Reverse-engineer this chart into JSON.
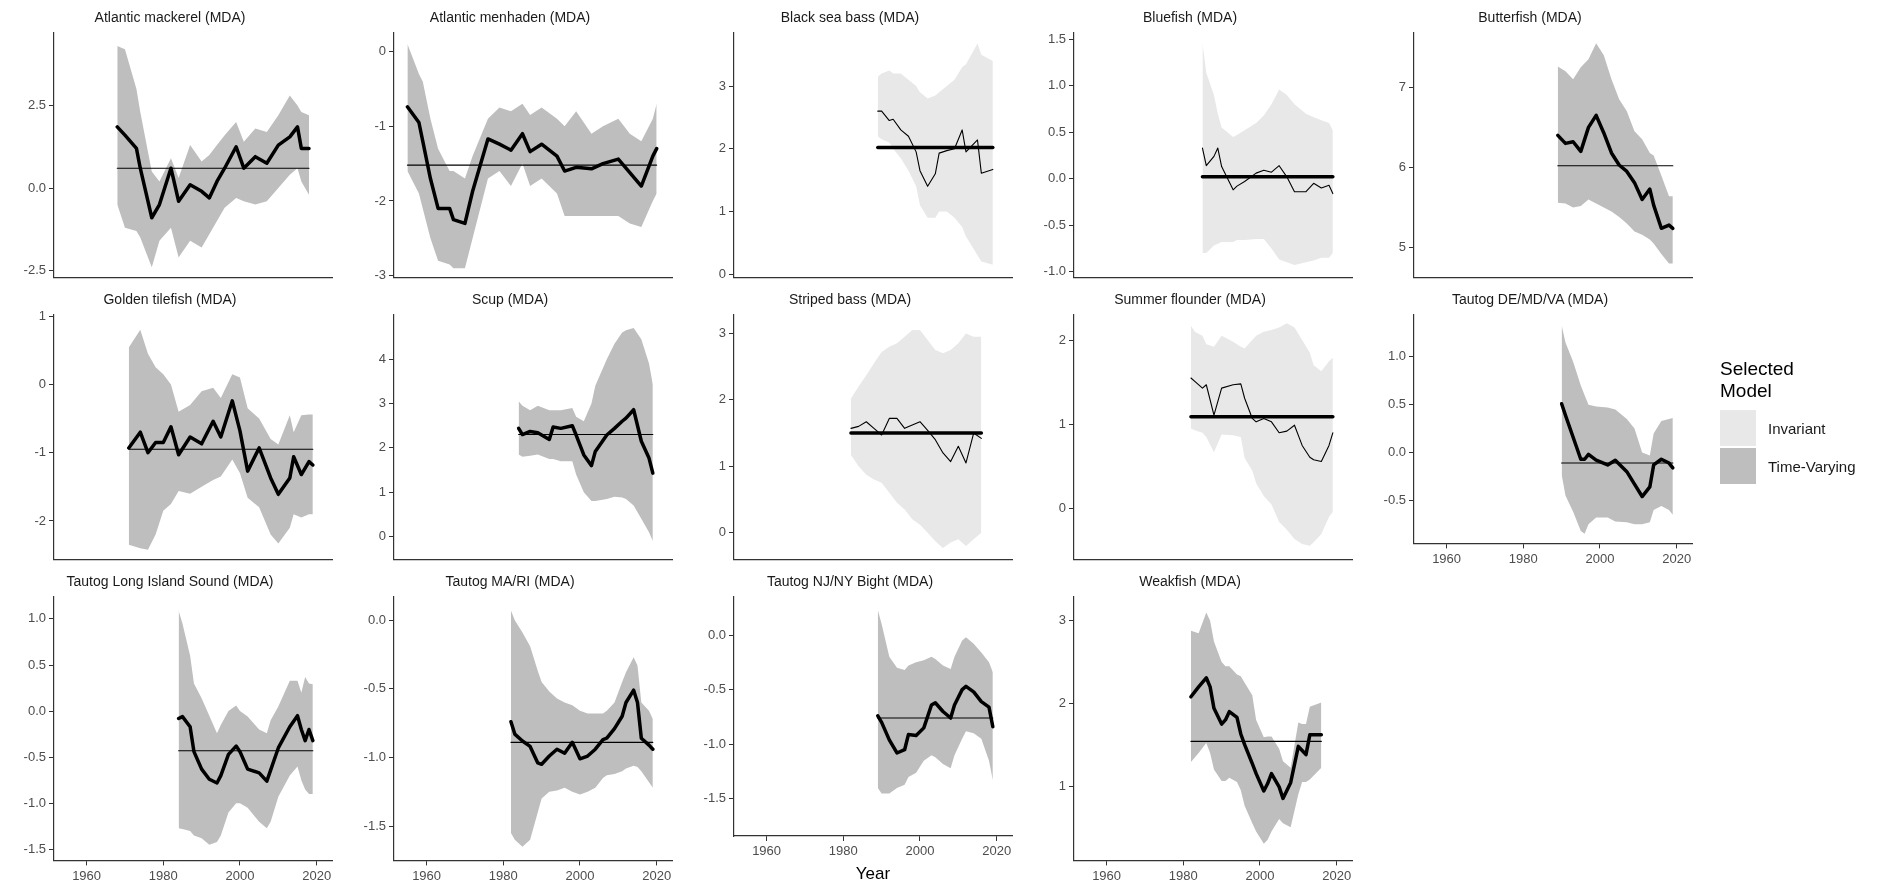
{
  "chart_data": [
    {
      "type": "line",
      "title": "Atlantic mackerel (MDA)",
      "tick_labels": "y",
      "xlim": [
        1951.5,
        2024
      ],
      "xticks": [
        1960,
        1980,
        2000,
        2020
      ],
      "ylim": [
        -2.7,
        4.7
      ],
      "yticks": [
        -2.5,
        {
          "value": 0,
          "label": "0.0"
        },
        2.5
      ],
      "series": [
        {
          "color": "#000000",
          "x": [
            1968,
            2018
          ],
          "values": [
            0.6,
            0.6
          ]
        },
        {
          "color": "#000000",
          "x": [
            1968,
            1970,
            1973,
            1974,
            1977,
            1979,
            1982,
            1984,
            1987,
            1990,
            1992,
            1994,
            1996,
            1999,
            2001,
            2004,
            2007,
            2010,
            2013,
            2015,
            2016,
            2018
          ],
          "values": [
            1.85,
            1.6,
            1.2,
            0.6,
            -0.9,
            -0.5,
            0.6,
            -0.4,
            0.1,
            -0.1,
            -0.3,
            0.2,
            0.6,
            1.25,
            0.6,
            0.95,
            0.75,
            1.3,
            1.55,
            1.85,
            1.2,
            1.2
          ],
          "upper": [
            4.3,
            4.2,
            3.0,
            2.3,
            0.5,
            0.2,
            0.9,
            0.3,
            1.3,
            0.8,
            1.0,
            1.3,
            1.6,
            2.0,
            1.4,
            1.8,
            1.7,
            2.2,
            2.8,
            2.5,
            2.3,
            2.2
          ],
          "lower": [
            -0.5,
            -1.2,
            -1.3,
            -1.5,
            -2.4,
            -1.6,
            -1.2,
            -2.1,
            -1.6,
            -1.8,
            -1.4,
            -1.0,
            -0.6,
            -0.3,
            -0.4,
            -0.5,
            -0.4,
            0.0,
            0.4,
            0.6,
            0.2,
            -0.2
          ]
        }
      ]
    },
    {
      "type": "line",
      "title": "Atlantic menhaden (MDA)",
      "tick_labels": "y",
      "xlim": [
        1951.5,
        2024
      ],
      "xticks": [
        1960,
        1980,
        2000,
        2020
      ],
      "ylim": [
        -3.02,
        0.25
      ],
      "yticks": [
        -3,
        -2,
        -1,
        0
      ],
      "series": [
        {
          "color": "#000000",
          "x": [
            1955,
            2020
          ],
          "values": [
            -1.52,
            -1.52
          ]
        },
        {
          "color": "#000000",
          "x": [
            1955,
            1958,
            1959,
            1961,
            1963,
            1966,
            1967,
            1970,
            1972,
            1976,
            1979,
            1982,
            1985,
            1987,
            1990,
            1994,
            1996,
            1999,
            2003,
            2006,
            2010,
            2013,
            2016,
            2019,
            2020
          ],
          "values": [
            -0.74,
            -0.95,
            -1.2,
            -1.7,
            -2.1,
            -2.1,
            -2.25,
            -2.3,
            -1.87,
            -1.17,
            -1.24,
            -1.32,
            -1.1,
            -1.34,
            -1.24,
            -1.4,
            -1.6,
            -1.55,
            -1.57,
            -1.5,
            -1.44,
            -1.62,
            -1.8,
            -1.4,
            -1.3
          ],
          "upper": [
            0.1,
            -0.3,
            -0.4,
            -0.9,
            -1.3,
            -1.6,
            -1.6,
            -1.7,
            -1.4,
            -0.9,
            -0.75,
            -0.8,
            -0.7,
            -0.85,
            -0.75,
            -0.9,
            -1.0,
            -0.8,
            -1.1,
            -1.0,
            -0.9,
            -1.1,
            -1.2,
            -0.9,
            -0.7
          ],
          "lower": [
            -1.6,
            -1.9,
            -2.1,
            -2.5,
            -2.8,
            -2.85,
            -2.9,
            -2.9,
            -2.5,
            -1.7,
            -1.6,
            -1.8,
            -1.5,
            -1.8,
            -1.7,
            -1.9,
            -2.2,
            -2.2,
            -2.2,
            -2.2,
            -2.2,
            -2.3,
            -2.35,
            -2.0,
            -1.9
          ]
        }
      ]
    },
    {
      "type": "line",
      "title": "Black sea bass (MDA)",
      "tick_labels": "y",
      "xlim": [
        1951.5,
        2024
      ],
      "xticks": [
        1960,
        1980,
        2000,
        2020
      ],
      "ylim": [
        -0.05,
        3.85
      ],
      "yticks": [
        0,
        1,
        2,
        3
      ],
      "series": [
        {
          "color": "#000000",
          "x": [
            1989,
            1990,
            1992,
            1993,
            1995,
            1997,
            1999,
            2000,
            2002,
            2004,
            2005,
            2007,
            2009,
            2011,
            2012,
            2015,
            2016,
            2019
          ],
          "values": [
            2.02,
            2.02,
            2.02,
            2.02,
            2.02,
            2.02,
            2.02,
            2.02,
            2.02,
            2.02,
            2.02,
            2.02,
            2.02,
            2.02,
            2.02,
            2.02,
            2.02,
            2.02
          ],
          "upper": [
            3.15,
            3.2,
            3.25,
            3.2,
            3.2,
            3.1,
            3.0,
            2.9,
            2.8,
            2.85,
            2.9,
            3.0,
            3.1,
            3.3,
            3.35,
            3.68,
            3.5,
            3.4
          ],
          "lower": [
            2.2,
            2.15,
            2.1,
            2.0,
            1.85,
            1.65,
            1.4,
            1.1,
            0.9,
            0.9,
            1.0,
            1.0,
            0.9,
            0.75,
            0.6,
            0.3,
            0.2,
            0.15
          ]
        },
        {
          "color": "#000000",
          "x": [
            1989,
            1990,
            1992,
            1993,
            1995,
            1997,
            1999,
            2000,
            2002,
            2004,
            2005,
            2007,
            2009,
            2011,
            2012,
            2015,
            2016,
            2019
          ],
          "values": [
            2.6,
            2.6,
            2.45,
            2.47,
            2.3,
            2.2,
            1.95,
            1.65,
            1.4,
            1.6,
            1.93,
            1.97,
            2.0,
            2.3,
            1.95,
            2.14,
            1.61,
            1.67
          ]
        }
      ]
    },
    {
      "type": "line",
      "title": "Bluefish (MDA)",
      "tick_labels": "y",
      "xlim": [
        1951.5,
        2024
      ],
      "xticks": [
        1960,
        1980,
        2000,
        2020
      ],
      "ylim": [
        -1.06,
        1.57
      ],
      "yticks": [
        {
          "value": -1,
          "label": "-1.0"
        },
        -0.5,
        {
          "value": 0,
          "label": "0.0"
        },
        0.5,
        {
          "value": 1,
          "label": "1.0"
        },
        1.5
      ],
      "series": [
        {
          "color": "#000000",
          "x": [
            1985,
            1986,
            1988,
            1989,
            1990,
            1993,
            1994,
            1996,
            1999,
            2001,
            2003,
            2005,
            2007,
            2009,
            2012,
            2014,
            2016,
            2018,
            2019
          ],
          "values": [
            0.02,
            0.02,
            0.02,
            0.02,
            0.02,
            0.02,
            0.02,
            0.02,
            0.02,
            0.02,
            0.02,
            0.02,
            0.02,
            0.02,
            0.02,
            0.02,
            0.02,
            0.02,
            0.02
          ],
          "upper": [
            1.46,
            1.14,
            0.9,
            0.7,
            0.55,
            0.45,
            0.47,
            0.52,
            0.6,
            0.68,
            0.8,
            0.96,
            0.9,
            0.8,
            0.7,
            0.66,
            0.63,
            0.6,
            0.52
          ],
          "lower": [
            -0.8,
            -0.8,
            -0.72,
            -0.7,
            -0.68,
            -0.68,
            -0.66,
            -0.66,
            -0.65,
            -0.65,
            -0.75,
            -0.87,
            -0.9,
            -0.93,
            -0.9,
            -0.88,
            -0.85,
            -0.85,
            -0.8
          ]
        },
        {
          "color": "#000000",
          "x": [
            1985,
            1986,
            1988,
            1989,
            1990,
            1993,
            1994,
            1996,
            1999,
            2001,
            2003,
            2005,
            2007,
            2009,
            2012,
            2014,
            2016,
            2018,
            2019
          ],
          "values": [
            0.33,
            0.14,
            0.24,
            0.33,
            0.13,
            -0.12,
            -0.08,
            -0.03,
            0.06,
            0.09,
            0.07,
            0.14,
            0.02,
            -0.14,
            -0.14,
            -0.05,
            -0.1,
            -0.07,
            -0.16
          ]
        }
      ]
    },
    {
      "type": "line",
      "title": "Butterfish (MDA)",
      "tick_labels": "y",
      "xlim": [
        1951.5,
        2024
      ],
      "xticks": [
        1960,
        1980,
        2000,
        2020
      ],
      "ylim": [
        4.63,
        7.68
      ],
      "yticks": [
        5,
        6,
        7
      ],
      "series": [
        {
          "color": "#000000",
          "x": [
            1989,
            2019
          ],
          "values": [
            6.02,
            6.02
          ]
        },
        {
          "color": "#000000",
          "x": [
            1989,
            1991,
            1993,
            1995,
            1997,
            1999,
            2001,
            2003,
            2005,
            2007,
            2009,
            2011,
            2013,
            2014,
            2016,
            2018,
            2019
          ],
          "values": [
            6.4,
            6.3,
            6.32,
            6.2,
            6.5,
            6.65,
            6.43,
            6.18,
            6.03,
            5.95,
            5.81,
            5.6,
            5.73,
            5.53,
            5.24,
            5.28,
            5.24
          ],
          "upper": [
            7.26,
            7.2,
            7.1,
            7.25,
            7.35,
            7.55,
            7.4,
            7.1,
            6.85,
            6.7,
            6.45,
            6.35,
            6.18,
            6.15,
            5.9,
            5.64,
            5.64
          ],
          "lower": [
            5.56,
            5.55,
            5.5,
            5.52,
            5.6,
            5.55,
            5.5,
            5.45,
            5.38,
            5.3,
            5.2,
            5.16,
            5.1,
            5.05,
            4.92,
            4.8,
            4.8
          ]
        }
      ]
    },
    {
      "type": "line",
      "title": "Golden tilefish (MDA)",
      "tick_labels": "y",
      "xlim": [
        1951.5,
        2024
      ],
      "xticks": [
        1960,
        1980,
        2000,
        2020
      ],
      "ylim": [
        -2.56,
        1.02
      ],
      "yticks": [
        -2,
        -1,
        0,
        1
      ],
      "series": [
        {
          "color": "#000000",
          "x": [
            1971,
            2019
          ],
          "values": [
            -0.95,
            -0.95
          ]
        },
        {
          "color": "#000000",
          "x": [
            1971,
            1974,
            1976,
            1978,
            1980,
            1982,
            1984,
            1987,
            1990,
            1993,
            1995,
            1998,
            2000,
            2002,
            2005,
            2008,
            2010,
            2013,
            2014,
            2016,
            2018,
            2019
          ],
          "values": [
            -0.93,
            -0.7,
            -1.0,
            -0.85,
            -0.85,
            -0.62,
            -1.03,
            -0.77,
            -0.87,
            -0.54,
            -0.77,
            -0.24,
            -0.68,
            -1.27,
            -0.93,
            -1.37,
            -1.61,
            -1.37,
            -1.06,
            -1.32,
            -1.13,
            -1.18
          ],
          "upper": [
            0.54,
            0.8,
            0.45,
            0.25,
            0.15,
            0.0,
            -0.4,
            -0.3,
            -0.1,
            -0.05,
            -0.2,
            0.15,
            0.1,
            -0.35,
            -0.5,
            -0.8,
            -0.88,
            -0.45,
            -0.7,
            -0.45,
            -0.44,
            -0.44
          ],
          "lower": [
            -2.35,
            -2.4,
            -2.42,
            -2.2,
            -1.85,
            -1.75,
            -1.56,
            -1.6,
            -1.5,
            -1.4,
            -1.35,
            -1.1,
            -1.3,
            -1.66,
            -1.8,
            -2.2,
            -2.33,
            -2.1,
            -1.9,
            -1.95,
            -1.9,
            -1.9
          ]
        }
      ]
    },
    {
      "type": "line",
      "title": "Scup (MDA)",
      "tick_labels": "y",
      "xlim": [
        1951.5,
        2024
      ],
      "xticks": [
        1960,
        1980,
        2000,
        2020
      ],
      "ylim": [
        -0.51,
        5.0
      ],
      "yticks": [
        0,
        1,
        2,
        3,
        4
      ],
      "series": [
        {
          "color": "#000000",
          "x": [
            1984,
            2019
          ],
          "values": [
            2.3,
            2.3
          ]
        },
        {
          "color": "#000000",
          "x": [
            1984,
            1985,
            1987,
            1989,
            1992,
            1993,
            1995,
            1998,
            1999,
            2001,
            2003,
            2004,
            2007,
            2009,
            2011,
            2012,
            2014,
            2016,
            2018,
            2019
          ],
          "values": [
            2.44,
            2.3,
            2.37,
            2.34,
            2.19,
            2.47,
            2.44,
            2.5,
            2.29,
            1.84,
            1.6,
            1.92,
            2.29,
            2.44,
            2.6,
            2.67,
            2.86,
            2.15,
            1.77,
            1.43
          ],
          "upper": [
            3.05,
            2.95,
            2.85,
            2.95,
            2.85,
            2.85,
            2.85,
            2.9,
            2.7,
            2.6,
            3.0,
            3.4,
            4.0,
            4.35,
            4.6,
            4.65,
            4.7,
            4.45,
            3.9,
            3.43
          ],
          "lower": [
            1.85,
            1.8,
            1.82,
            1.85,
            1.75,
            1.75,
            1.7,
            1.7,
            1.4,
            1.0,
            0.8,
            0.8,
            0.85,
            0.9,
            0.88,
            0.85,
            0.7,
            0.4,
            0.1,
            -0.1
          ]
        }
      ]
    },
    {
      "type": "line",
      "title": "Striped bass (MDA)",
      "tick_labels": "y",
      "xlim": [
        1951.5,
        2024
      ],
      "xticks": [
        1960,
        1980,
        2000,
        2020
      ],
      "ylim": [
        -0.4,
        3.28
      ],
      "yticks": [
        0,
        1,
        2,
        3
      ],
      "series": [
        {
          "color": "#000000",
          "x": [
            1982,
            1984,
            1986,
            1988,
            1990,
            1992,
            1994,
            1996,
            1998,
            2000,
            2002,
            2004,
            2006,
            2008,
            2010,
            2012,
            2014,
            2016
          ],
          "values": [
            1.5,
            1.5,
            1.5,
            1.5,
            1.5,
            1.5,
            1.5,
            1.5,
            1.5,
            1.5,
            1.5,
            1.5,
            1.5,
            1.5,
            1.5,
            1.5,
            1.5,
            1.5
          ],
          "upper": [
            2.02,
            2.2,
            2.37,
            2.55,
            2.72,
            2.8,
            2.85,
            2.95,
            3.05,
            3.05,
            2.9,
            2.75,
            2.7,
            2.75,
            2.85,
            3.0,
            2.95,
            2.95
          ],
          "lower": [
            1.17,
            1.0,
            0.87,
            0.8,
            0.75,
            0.6,
            0.45,
            0.35,
            0.2,
            0.12,
            0.0,
            -0.13,
            -0.23,
            -0.15,
            -0.1,
            -0.2,
            -0.1,
            0.0
          ]
        },
        {
          "color": "#000000",
          "x": [
            1982,
            1984,
            1986,
            1988,
            1990,
            1992,
            1994,
            1996,
            1998,
            2000,
            2002,
            2004,
            2006,
            2008,
            2010,
            2012,
            2014,
            2016
          ],
          "values": [
            1.57,
            1.6,
            1.67,
            1.57,
            1.47,
            1.72,
            1.72,
            1.57,
            1.62,
            1.67,
            1.54,
            1.4,
            1.2,
            1.07,
            1.3,
            1.05,
            1.5,
            1.42
          ]
        }
      ]
    },
    {
      "type": "line",
      "title": "Summer flounder (MDA)",
      "tick_labels": "y",
      "xlim": [
        1951.5,
        2024
      ],
      "xticks": [
        1960,
        1980,
        2000,
        2020
      ],
      "ylim": [
        -0.6,
        2.3
      ],
      "yticks": [
        0,
        1,
        2
      ],
      "series": [
        {
          "color": "#000000",
          "x": [
            1982,
            1983,
            1985,
            1986,
            1988,
            1990,
            1993,
            1995,
            1996,
            1998,
            1999,
            2001,
            2003,
            2005,
            2007,
            2009,
            2011,
            2013,
            2014,
            2016,
            2018,
            2019
          ],
          "values": [
            1.09,
            1.09,
            1.09,
            1.09,
            1.09,
            1.09,
            1.09,
            1.09,
            1.09,
            1.09,
            1.09,
            1.09,
            1.09,
            1.09,
            1.09,
            1.09,
            1.09,
            1.09,
            1.09,
            1.09,
            1.09,
            1.09
          ],
          "upper": [
            2.17,
            2.1,
            2.05,
            1.95,
            1.92,
            2.05,
            1.98,
            1.92,
            1.9,
            2.0,
            2.05,
            2.1,
            2.12,
            2.15,
            2.2,
            2.15,
            2.0,
            1.85,
            1.7,
            1.63,
            1.75,
            1.79
          ],
          "lower": [
            0.95,
            0.93,
            0.9,
            0.85,
            0.67,
            0.88,
            0.87,
            0.85,
            0.6,
            0.45,
            0.3,
            0.15,
            0.05,
            -0.16,
            -0.25,
            -0.36,
            -0.42,
            -0.44,
            -0.4,
            -0.3,
            -0.1,
            -0.04
          ]
        },
        {
          "color": "#000000",
          "x": [
            1982,
            1983,
            1985,
            1986,
            1988,
            1990,
            1993,
            1995,
            1996,
            1998,
            1999,
            2001,
            2003,
            2005,
            2007,
            2009,
            2011,
            2013,
            2014,
            2016,
            2018,
            2019
          ],
          "values": [
            1.55,
            1.51,
            1.43,
            1.47,
            1.11,
            1.43,
            1.47,
            1.48,
            1.31,
            1.07,
            1.03,
            1.07,
            1.03,
            0.9,
            0.92,
            0.99,
            0.75,
            0.61,
            0.58,
            0.56,
            0.75,
            0.9
          ]
        }
      ]
    },
    {
      "type": "line",
      "title": "Tautog DE/MD/VA (MDA)",
      "xlim": [
        1951.5,
        2024
      ],
      "xticks": [
        1960,
        1980,
        2000,
        2020
      ],
      "ylim": [
        -0.95,
        1.44
      ],
      "yticks": [
        -0.5,
        {
          "value": 0,
          "label": "0.0"
        },
        0.5,
        {
          "value": 1,
          "label": "1.0"
        }
      ],
      "series": [
        {
          "color": "#000000",
          "x": [
            1990,
            2019
          ],
          "values": [
            -0.11,
            -0.11
          ]
        },
        {
          "color": "#000000",
          "x": [
            1990,
            1991,
            1993,
            1995,
            1996,
            1997,
            1999,
            2002,
            2004,
            2007,
            2009,
            2011,
            2013,
            2014,
            2016,
            2018,
            2019
          ],
          "values": [
            0.51,
            0.39,
            0.16,
            -0.07,
            -0.07,
            -0.02,
            -0.08,
            -0.13,
            -0.08,
            -0.2,
            -0.33,
            -0.46,
            -0.36,
            -0.13,
            -0.07,
            -0.11,
            -0.16
          ],
          "upper": [
            1.33,
            1.15,
            0.95,
            0.7,
            0.6,
            0.5,
            0.48,
            0.47,
            0.45,
            0.35,
            0.25,
            0.0,
            -0.03,
            0.2,
            0.33,
            0.35,
            0.36
          ],
          "lower": [
            -0.23,
            -0.45,
            -0.62,
            -0.82,
            -0.85,
            -0.75,
            -0.68,
            -0.68,
            -0.72,
            -0.73,
            -0.75,
            -0.75,
            -0.73,
            -0.6,
            -0.56,
            -0.6,
            -0.65
          ]
        }
      ]
    },
    {
      "type": "line",
      "title": "Tautog Long Island Sound (MDA)",
      "xlim": [
        1951.5,
        2024
      ],
      "xticks": [
        1960,
        1980,
        2000,
        2020
      ],
      "ylim": [
        -1.62,
        1.24
      ],
      "yticks": [
        -1.5,
        {
          "value": -1,
          "label": "-1.0"
        },
        -0.5,
        {
          "value": 0,
          "label": "0.0"
        },
        0.5,
        {
          "value": 1,
          "label": "1.0"
        }
      ],
      "series": [
        {
          "color": "#000000",
          "x": [
            1984,
            2019
          ],
          "values": [
            -0.43,
            -0.43
          ]
        },
        {
          "color": "#000000",
          "x": [
            1984,
            1985,
            1987,
            1988,
            1990,
            1992,
            1994,
            1995,
            1997,
            1999,
            2000,
            2002,
            2005,
            2007,
            2008,
            2010,
            2013,
            2015,
            2016,
            2017,
            2018,
            2019
          ],
          "values": [
            -0.08,
            -0.06,
            -0.17,
            -0.44,
            -0.63,
            -0.74,
            -0.78,
            -0.7,
            -0.47,
            -0.38,
            -0.44,
            -0.63,
            -0.67,
            -0.76,
            -0.64,
            -0.4,
            -0.17,
            -0.05,
            -0.2,
            -0.32,
            -0.2,
            -0.32
          ],
          "upper": [
            1.09,
            0.95,
            0.6,
            0.3,
            0.14,
            -0.05,
            -0.24,
            -0.15,
            0.0,
            0.06,
            0.0,
            -0.06,
            -0.2,
            -0.24,
            -0.1,
            0.05,
            0.33,
            0.33,
            0.2,
            0.37,
            0.3,
            0.29
          ],
          "lower": [
            -1.27,
            -1.28,
            -1.3,
            -1.35,
            -1.38,
            -1.45,
            -1.42,
            -1.35,
            -1.1,
            -1.0,
            -1.0,
            -1.05,
            -1.2,
            -1.27,
            -1.2,
            -0.93,
            -0.7,
            -0.6,
            -0.75,
            -0.85,
            -0.9,
            -0.9
          ]
        }
      ]
    },
    {
      "type": "line",
      "title": "Tautog MA/RI (MDA)",
      "xlim": [
        1951.5,
        2024
      ],
      "xticks": [
        1960,
        1980,
        2000,
        2020
      ],
      "ylim": [
        -1.75,
        0.17
      ],
      "yticks": [
        -1.5,
        {
          "value": -1,
          "label": "-1.0"
        },
        -0.5,
        {
          "value": 0,
          "label": "0.0"
        }
      ],
      "series": [
        {
          "color": "#000000",
          "x": [
            1982,
            2019
          ],
          "values": [
            -0.89,
            -0.89
          ]
        },
        {
          "color": "#000000",
          "x": [
            1982,
            1983,
            1985,
            1987,
            1989,
            1990,
            1992,
            1994,
            1996,
            1998,
            2000,
            2002,
            2004,
            2006,
            2007,
            2009,
            2011,
            2012,
            2014,
            2015,
            2016,
            2018,
            2019
          ],
          "values": [
            -0.74,
            -0.83,
            -0.88,
            -0.92,
            -1.04,
            -1.05,
            -0.99,
            -0.94,
            -0.97,
            -0.89,
            -1.01,
            -0.99,
            -0.94,
            -0.87,
            -0.86,
            -0.79,
            -0.7,
            -0.6,
            -0.51,
            -0.6,
            -0.86,
            -0.91,
            -0.94
          ],
          "upper": [
            0.07,
            0.0,
            -0.09,
            -0.19,
            -0.37,
            -0.45,
            -0.52,
            -0.57,
            -0.6,
            -0.62,
            -0.66,
            -0.68,
            -0.68,
            -0.68,
            -0.66,
            -0.6,
            -0.45,
            -0.38,
            -0.27,
            -0.33,
            -0.6,
            -0.66,
            -0.72
          ],
          "lower": [
            -1.55,
            -1.6,
            -1.65,
            -1.6,
            -1.4,
            -1.3,
            -1.25,
            -1.24,
            -1.22,
            -1.25,
            -1.27,
            -1.25,
            -1.22,
            -1.15,
            -1.13,
            -1.12,
            -1.1,
            -1.08,
            -1.06,
            -1.07,
            -1.1,
            -1.18,
            -1.22
          ]
        }
      ]
    },
    {
      "type": "line",
      "title": "Tautog NJ/NY Bight (MDA)",
      "xlabel": "Year",
      "xlim": [
        1951.5,
        2024
      ],
      "xticks": [
        1960,
        1980,
        2000,
        2020
      ],
      "ylim": [
        -1.84,
        0.35
      ],
      "yticks": [
        -1.5,
        {
          "value": -1,
          "label": "-1.0"
        },
        -0.5,
        {
          "value": 0,
          "label": "0.0"
        }
      ],
      "series": [
        {
          "color": "#000000",
          "x": [
            1989,
            2019
          ],
          "values": [
            -0.76,
            -0.76
          ]
        },
        {
          "color": "#000000",
          "x": [
            1989,
            1990,
            1992,
            1994,
            1996,
            1997,
            1999,
            2001,
            2003,
            2004,
            2006,
            2008,
            2009,
            2011,
            2012,
            2014,
            2016,
            2018,
            2019
          ],
          "values": [
            -0.74,
            -0.8,
            -0.96,
            -1.08,
            -1.05,
            -0.91,
            -0.92,
            -0.85,
            -0.64,
            -0.62,
            -0.7,
            -0.76,
            -0.64,
            -0.5,
            -0.47,
            -0.52,
            -0.61,
            -0.66,
            -0.84
          ],
          "upper": [
            0.23,
            0.1,
            -0.2,
            -0.3,
            -0.32,
            -0.28,
            -0.25,
            -0.23,
            -0.2,
            -0.22,
            -0.28,
            -0.31,
            -0.2,
            -0.05,
            -0.02,
            -0.08,
            -0.16,
            -0.25,
            -0.34
          ],
          "lower": [
            -1.4,
            -1.45,
            -1.45,
            -1.4,
            -1.37,
            -1.3,
            -1.26,
            -1.15,
            -1.1,
            -1.12,
            -1.18,
            -1.22,
            -1.1,
            -0.95,
            -0.88,
            -0.9,
            -0.95,
            -1.15,
            -1.33
          ]
        }
      ]
    },
    {
      "type": "line",
      "title": "Weakfish (MDA)",
      "xlim": [
        1951.5,
        2024
      ],
      "xticks": [
        1960,
        1980,
        2000,
        2020
      ],
      "ylim": [
        0.1,
        3.29
      ],
      "yticks": [
        1,
        2,
        3
      ],
      "series": [
        {
          "color": "#000000",
          "x": [
            1982,
            2016
          ],
          "values": [
            1.54,
            1.54
          ]
        },
        {
          "color": "#000000",
          "x": [
            1982,
            1984,
            1986,
            1987,
            1988,
            1990,
            1991,
            1992,
            1994,
            1995,
            1996,
            1998,
            1999,
            2001,
            2002,
            2003,
            2005,
            2006,
            2008,
            2010,
            2011,
            2012,
            2013,
            2016
          ],
          "values": [
            2.08,
            2.2,
            2.31,
            2.2,
            1.94,
            1.75,
            1.8,
            1.9,
            1.83,
            1.63,
            1.5,
            1.27,
            1.15,
            0.94,
            1.03,
            1.15,
            0.99,
            0.85,
            1.04,
            1.48,
            1.43,
            1.38,
            1.62,
            1.62
          ],
          "upper": [
            2.88,
            2.85,
            3.1,
            3.0,
            2.75,
            2.5,
            2.45,
            2.45,
            2.35,
            2.33,
            2.25,
            2.1,
            1.8,
            1.59,
            1.6,
            1.6,
            1.45,
            1.3,
            1.22,
            1.77,
            1.75,
            1.75,
            1.96,
            2.01
          ],
          "lower": [
            1.29,
            1.4,
            1.52,
            1.4,
            1.2,
            1.06,
            1.06,
            1.1,
            1.05,
            0.95,
            0.76,
            0.55,
            0.45,
            0.3,
            0.35,
            0.45,
            0.6,
            0.55,
            0.5,
            0.9,
            1.05,
            1.05,
            1.08,
            1.22
          ]
        }
      ]
    },
    {
      "type": "other",
      "legend": "right",
      "legend_title": "Selected Model",
      "series": [
        {
          "name": "Invariant",
          "color": "#e8e8e8"
        },
        {
          "name": "Time-Varying",
          "color": "#bebebe"
        }
      ]
    }
  ]
}
